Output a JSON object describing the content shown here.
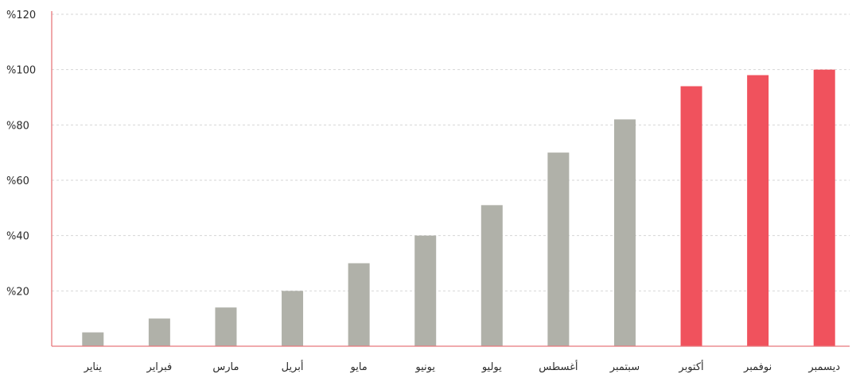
{
  "chart_data": {
    "type": "bar",
    "title": "",
    "xlabel": "",
    "ylabel": "",
    "categories": [
      "يناير",
      "فبراير",
      "مارس",
      "أبريل",
      "مايو",
      "يونيو",
      "يوليو",
      "أغسطس",
      "سبتمبر",
      "أكتوبر",
      "نوفمبر",
      "ديسمبر"
    ],
    "values": [
      5,
      10,
      14,
      20,
      30,
      40,
      51,
      70,
      82,
      94,
      98,
      100
    ],
    "ylim": [
      0,
      120
    ],
    "yticks": [
      20,
      40,
      60,
      80,
      100,
      120
    ],
    "ytick_labels": [
      "%20",
      "%40",
      "%60",
      "%80",
      "%100",
      "%120"
    ],
    "grid": true,
    "colors": {
      "default_bar": "#b0b1a9",
      "highlight_bar": "#f0525d",
      "axis": "#e8787c",
      "grid": "#d6d6d6"
    },
    "highlighted_categories": [
      "أكتوبر",
      "نوفمبر",
      "ديسمبر"
    ]
  }
}
